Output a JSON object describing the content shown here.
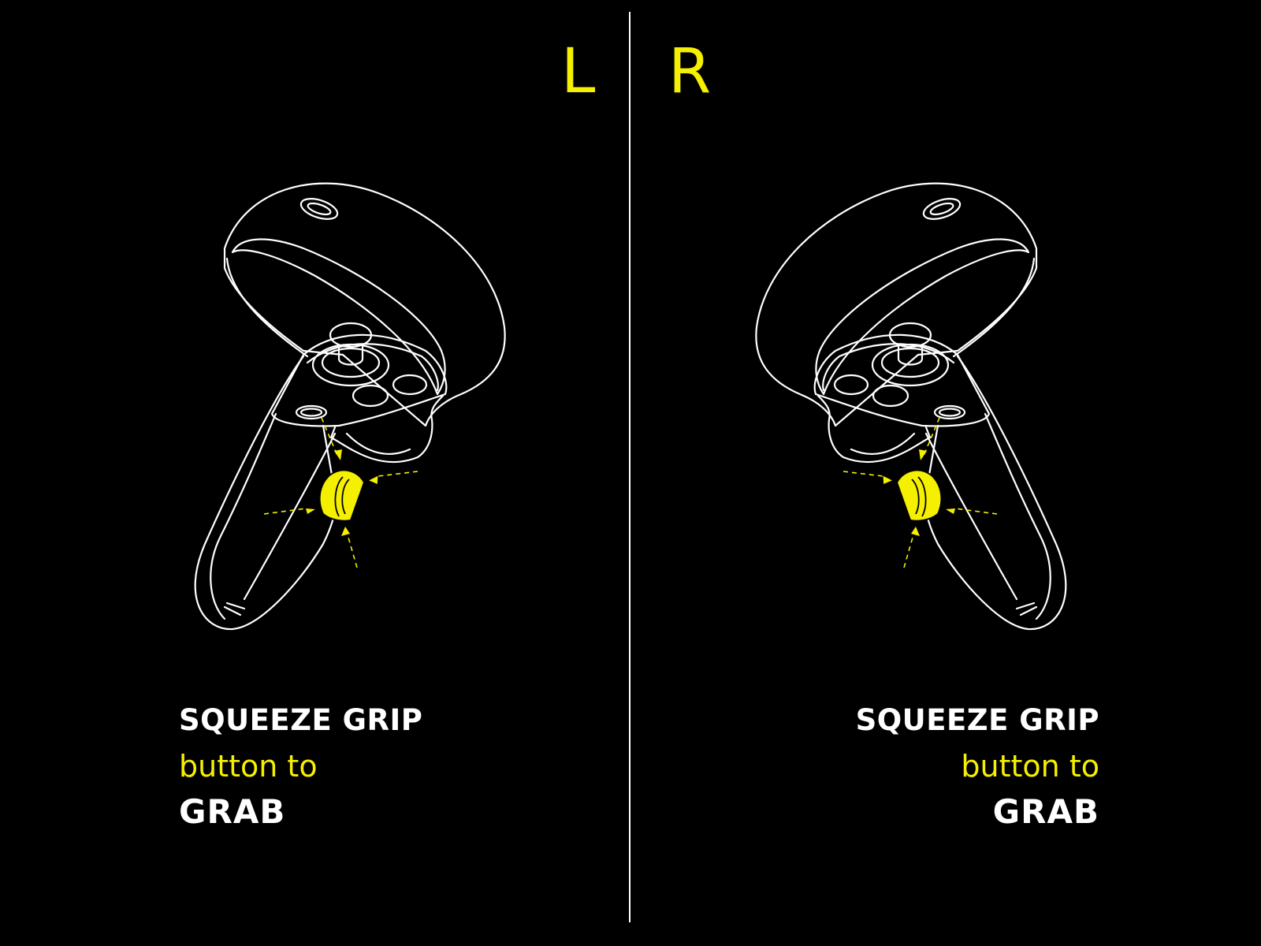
{
  "labels": {
    "left": "L",
    "right": "R"
  },
  "colors": {
    "background": "#000000",
    "accent": "#f5ef00",
    "line": "#ffffff"
  },
  "captions": {
    "left": {
      "line1": "SQUEEZE GRIP",
      "line2": "button to",
      "line3": "GRAB"
    },
    "right": {
      "line1": "SQUEEZE GRIP",
      "line2": "button to",
      "line3": "GRAB"
    }
  },
  "icons": {
    "left_controller": "left-controller-icon",
    "right_controller": "right-controller-icon",
    "grip_button": "grip-button-highlight"
  }
}
